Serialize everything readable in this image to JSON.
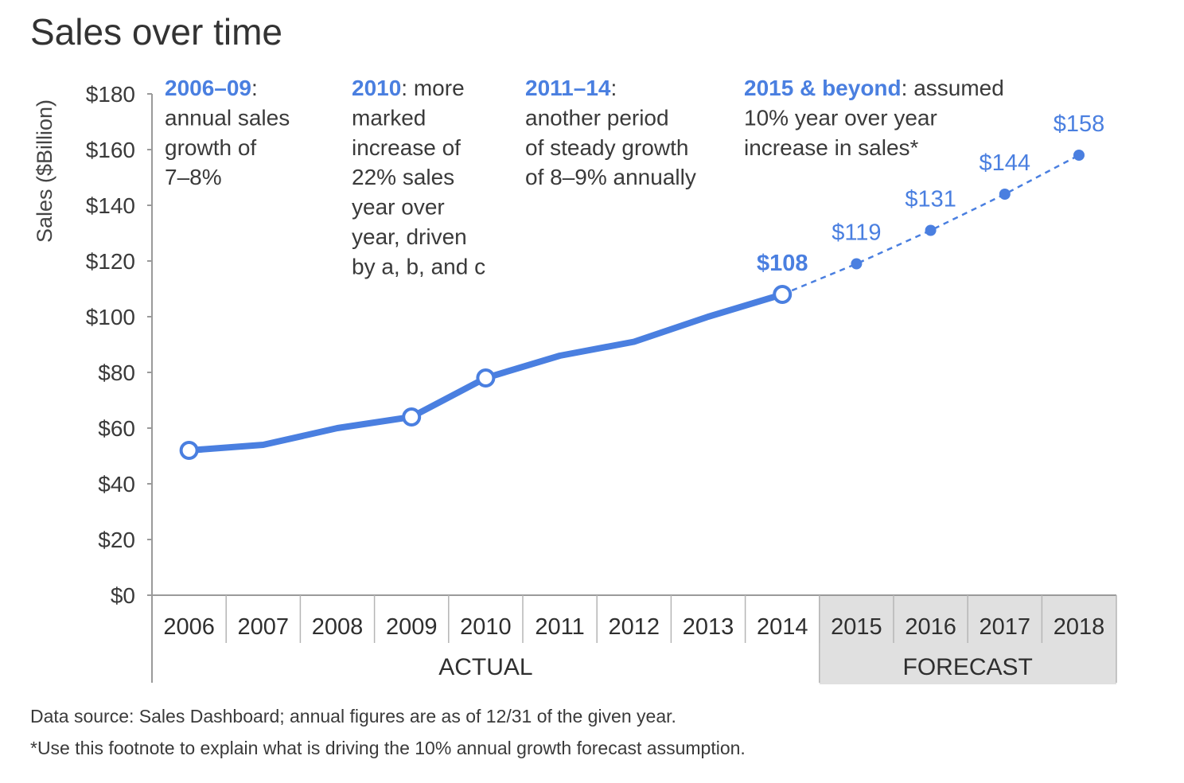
{
  "chart_data": {
    "type": "line",
    "title": "Sales over time",
    "ylabel": "Sales ($Billion)",
    "xlabel": "",
    "ylim": [
      0,
      180
    ],
    "y_ticks": [
      "$0",
      "$20",
      "$40",
      "$60",
      "$80",
      "$100",
      "$120",
      "$140",
      "$160",
      "$180"
    ],
    "categories": [
      "2006",
      "2007",
      "2008",
      "2009",
      "2010",
      "2011",
      "2012",
      "2013",
      "2014",
      "2015",
      "2016",
      "2017",
      "2018"
    ],
    "series": [
      {
        "style": "solid",
        "x": [
          "2006",
          "2007",
          "2008",
          "2009",
          "2010",
          "2011",
          "2012",
          "2013",
          "2014"
        ],
        "values": [
          52,
          54,
          60,
          64,
          78,
          86,
          91,
          100,
          108
        ]
      },
      {
        "style": "dashed",
        "x": [
          "2014",
          "2015",
          "2016",
          "2017",
          "2018"
        ],
        "values": [
          108,
          119,
          131,
          144,
          158
        ]
      }
    ],
    "highlighted_points": [
      "2006",
      "2009",
      "2010",
      "2014"
    ],
    "data_labels": [
      {
        "x": "2014",
        "label": "$108",
        "bold": true
      },
      {
        "x": "2015",
        "label": "$119",
        "bold": false
      },
      {
        "x": "2016",
        "label": "$131",
        "bold": false
      },
      {
        "x": "2017",
        "label": "$144",
        "bold": false
      },
      {
        "x": "2018",
        "label": "$158",
        "bold": false
      }
    ],
    "groups": [
      {
        "label": "ACTUAL",
        "from": "2006",
        "to": "2014",
        "shaded": false
      },
      {
        "label": "FORECAST",
        "from": "2015",
        "to": "2018",
        "shaded": true
      }
    ],
    "annotations": [
      {
        "head": "2006–09",
        "lines": [
          ": ",
          "annual sales",
          "growth of",
          "7–8%"
        ]
      },
      {
        "head": "2010",
        "lines": [
          ": more",
          "marked",
          "increase of",
          "22% sales",
          "year over",
          "year, driven",
          "by a, b, and c"
        ]
      },
      {
        "head": "2011–14",
        "lines": [
          ":",
          "another period",
          "of steady growth",
          "of 8–9% annually"
        ]
      },
      {
        "head": "2015 & beyond",
        "lines": [
          ": assumed",
          "10% year over year",
          "increase in sales*"
        ]
      }
    ],
    "colors": {
      "line": "#4a7fe0",
      "forecast_shade": "#e0e0e0",
      "axis": "#9a9a9a"
    },
    "grid": false
  },
  "footnotes": [
    "Data source: Sales Dashboard; annual figures are as of 12/31 of the given year.",
    "*Use this footnote to explain what is driving the 10% annual growth forecast assumption."
  ]
}
